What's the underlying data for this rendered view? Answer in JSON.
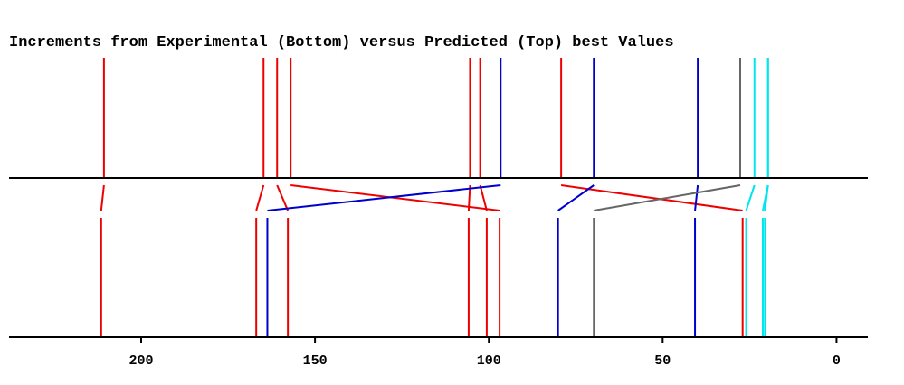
{
  "chart_data": {
    "type": "stick-correlation",
    "title": "Increments from Experimental (Bottom) versus Predicted (Top) best Values",
    "xlim": [
      238,
      -9
    ],
    "x_ticks": [
      {
        "value": 200,
        "label": "200"
      },
      {
        "value": 150,
        "label": "150"
      },
      {
        "value": 100,
        "label": "100"
      },
      {
        "value": 50,
        "label": "50"
      },
      {
        "value": 0,
        "label": "0"
      }
    ],
    "colors": {
      "red": "#ee0000",
      "blue": "#0000cc",
      "gray": "#666666",
      "cyan": "#00e5ee"
    },
    "pairs": [
      {
        "predicted": 210.7,
        "experimental": 211.5,
        "color": "red"
      },
      {
        "predicted": 164.8,
        "experimental": 166.9,
        "color": "red"
      },
      {
        "predicted": 160.9,
        "experimental": 157.8,
        "color": "red"
      },
      {
        "predicted": 157.0,
        "experimental": 96.9,
        "color": "red"
      },
      {
        "predicted": 105.4,
        "experimental": 105.8,
        "color": "red"
      },
      {
        "predicted": 102.5,
        "experimental": 100.6,
        "color": "red"
      },
      {
        "predicted": 96.6,
        "experimental": 163.7,
        "color": "blue"
      },
      {
        "predicted": 79.2,
        "experimental": 27.0,
        "color": "red"
      },
      {
        "predicted": 69.8,
        "experimental": 80.1,
        "color": "blue"
      },
      {
        "predicted": 39.9,
        "experimental": 40.7,
        "color": "blue"
      },
      {
        "predicted": 27.7,
        "experimental": 69.8,
        "color": "gray"
      },
      {
        "predicted": 23.6,
        "experimental": 26.0,
        "color": "cyan"
      },
      {
        "predicted": 19.7,
        "experimental": 21.2,
        "color": "cyan"
      },
      {
        "predicted": 19.7,
        "experimental": 20.6,
        "color": "cyan"
      }
    ]
  }
}
